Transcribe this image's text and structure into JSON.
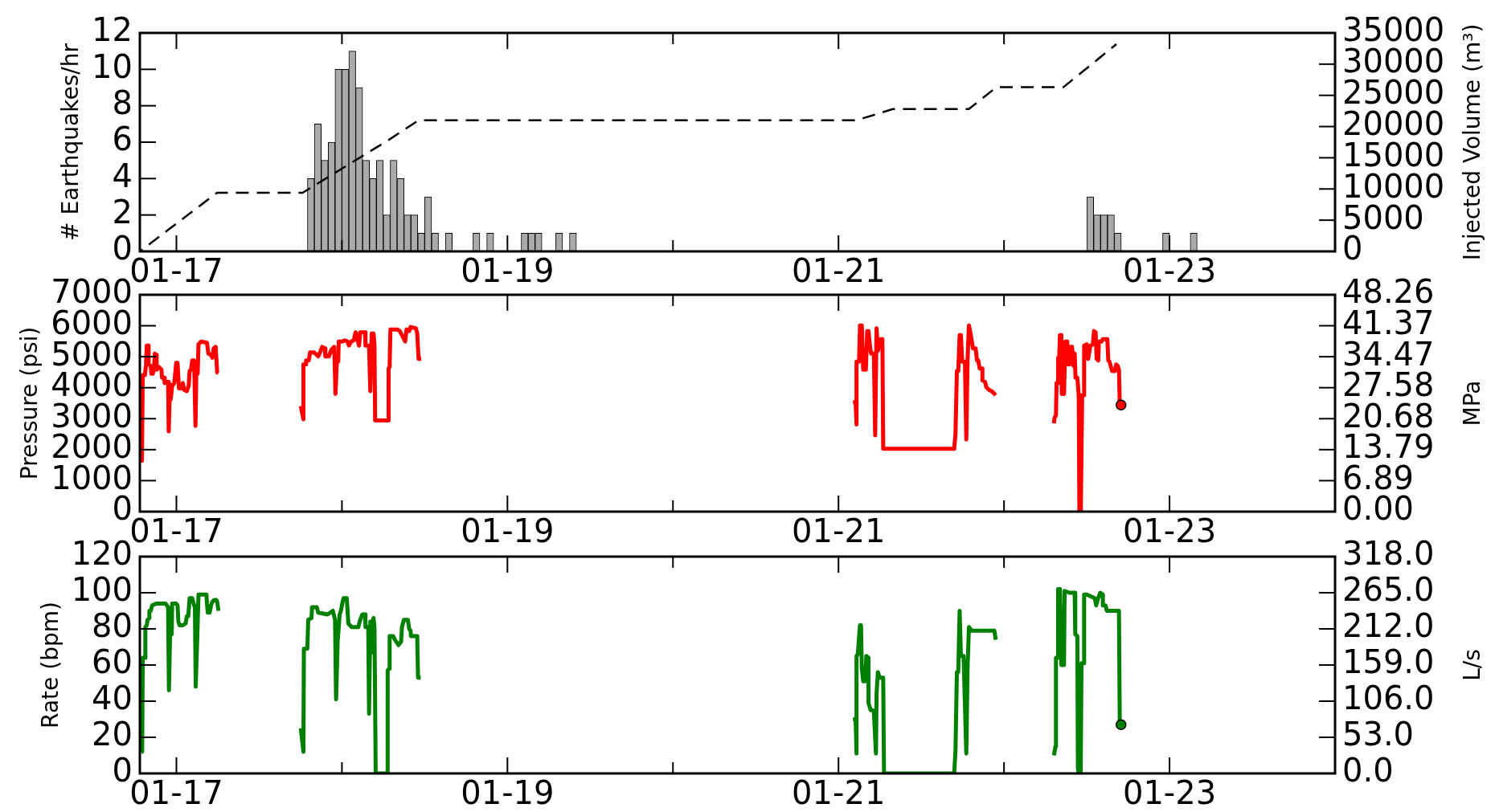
{
  "chart_data": [
    {
      "type": "histogram",
      "ylabel": "# Earthquakes/hr",
      "y2label": "Injected Volume (m³)",
      "bins": [
        "--01-17T19:00",
        "--01-17T20:00",
        "--01-17T21:00",
        "--01-17T22:00",
        "--01-17T23:00",
        "--01-18T00:00",
        "--01-18T01:00",
        "--01-18T02:00",
        "--01-18T03:00",
        "--01-18T04:00",
        "--01-18T05:00",
        "--01-18T06:00",
        "--01-18T07:00",
        "--01-18T08:00",
        "--01-18T09:00",
        "--01-18T10:00",
        "--01-18T11:00",
        "--01-18T12:00",
        "--01-18T13:00",
        "--01-18T14:00",
        "--01-18T15:00",
        "--01-18T16:00",
        "--01-18T17:00",
        "--01-18T18:00",
        "--01-18T19:00",
        "--01-18T20:00",
        "--01-18T21:00",
        "--01-18T22:00",
        "--01-18T23:00",
        "--01-19T00:00",
        "--01-19T01:00",
        "--01-19T02:00",
        "--01-19T03:00",
        "--01-19T04:00",
        "--01-19T05:00",
        "--01-19T06:00",
        "--01-19T07:00",
        "--01-19T08:00",
        "--01-19T09:00",
        "--01-19T10:00",
        "--01-19T11:00",
        "--01-19T12:00",
        "--01-19T13:00",
        "--01-19T14:00",
        "--01-19T15:00",
        "--01-19T16:00",
        "--01-19T17:00",
        "--01-19T18:00",
        "--01-19T19:00",
        "--01-19T20:00",
        "--01-19T21:00",
        "--01-19T22:00",
        "--01-19T23:00",
        "--01-20T00:00",
        "--01-20T01:00",
        "--01-20T02:00",
        "--01-20T03:00",
        "--01-20T04:00",
        "--01-20T05:00",
        "--01-20T06:00",
        "--01-20T07:00",
        "--01-20T08:00",
        "--01-20T09:00",
        "--01-20T10:00",
        "--01-20T11:00",
        "--01-20T12:00",
        "--01-20T13:00",
        "--01-20T14:00",
        "--01-20T15:00",
        "--01-20T16:00",
        "--01-20T17:00",
        "--01-20T18:00",
        "--01-20T19:00",
        "--01-20T20:00",
        "--01-20T21:00",
        "--01-20T22:00",
        "--01-20T23:00",
        "--01-21T00:00",
        "--01-21T01:00",
        "--01-21T02:00",
        "--01-21T03:00",
        "--01-21T04:00",
        "--01-21T05:00",
        "--01-21T06:00",
        "--01-21T07:00",
        "--01-21T08:00",
        "--01-21T09:00",
        "--01-21T10:00",
        "--01-21T11:00",
        "--01-21T12:00",
        "--01-21T13:00",
        "--01-21T14:00",
        "--01-21T15:00",
        "--01-21T16:00",
        "--01-21T17:00",
        "--01-21T18:00",
        "--01-21T19:00",
        "--01-21T20:00",
        "--01-21T21:00",
        "--01-21T22:00",
        "--01-21T23:00",
        "--01-22T00:00",
        "--01-22T01:00",
        "--01-22T02:00",
        "--01-22T03:00",
        "--01-22T04:00",
        "--01-22T05:00",
        "--01-22T06:00",
        "--01-22T07:00",
        "--01-22T08:00",
        "--01-22T09:00",
        "--01-22T10:00",
        "--01-22T11:00",
        "--01-22T12:00",
        "--01-22T13:00",
        "--01-22T14:00",
        "--01-22T15:00",
        "--01-22T16:00",
        "--01-22T17:00",
        "--01-22T18:00",
        "--01-22T19:00",
        "--01-22T20:00",
        "--01-22T21:00",
        "--01-22T22:00",
        "--01-22T23:00",
        "--01-23T00:00",
        "--01-23T01:00",
        "--01-23T02:00",
        "--01-23T03:00",
        "--01-23T04:00"
      ],
      "series": [
        {
          "color": "#aaaaaa",
          "values": [
            4,
            7,
            5,
            6,
            10,
            10,
            11,
            9,
            5,
            4,
            5,
            2,
            5,
            4,
            2,
            2,
            1,
            3,
            1,
            0,
            1,
            0,
            0,
            0,
            1,
            0,
            1,
            0,
            0,
            0,
            0,
            1,
            1,
            1,
            0,
            0,
            1,
            0,
            1,
            0,
            0,
            0,
            0,
            0,
            0,
            0,
            0,
            0,
            0,
            0,
            0,
            0,
            0,
            0,
            0,
            0,
            0,
            0,
            0,
            0,
            0,
            0,
            0,
            0,
            0,
            0,
            0,
            0,
            0,
            0,
            0,
            0,
            0,
            0,
            0,
            0,
            0,
            0,
            0,
            0,
            0,
            0,
            0,
            0,
            0,
            0,
            0,
            0,
            0,
            0,
            0,
            0,
            0,
            0,
            0,
            0,
            0,
            0,
            0,
            0,
            0,
            0,
            0,
            0,
            0,
            0,
            0,
            0,
            0,
            0,
            0,
            0,
            0,
            3,
            2,
            2,
            2,
            1,
            0,
            0,
            0,
            0,
            0,
            0,
            1,
            0,
            0,
            0,
            1
          ]
        },
        {
          "type": "line",
          "axis": "y2",
          "line_style": "dashed",
          "color": "#000000",
          "x": [
            "--01-16T18:42",
            "--01-17T05:54",
            "--01-17T18:18",
            "--01-18T06:42",
            "--01-18T11:06",
            "--01-21T02:36",
            "--01-21T07:54",
            "--01-21T18:54",
            "--01-21T22:54",
            "--01-22T08:36",
            "--01-22T16:18"
          ],
          "values": [
            0,
            9400,
            9400,
            17800,
            21000,
            21000,
            22800,
            22800,
            26300,
            26300,
            33200
          ]
        }
      ],
      "xlim": [
        "--01-16T18:42",
        "--01-24"
      ],
      "xticks": [
        {
          "value": "--01-17",
          "label": "01-17"
        },
        {
          "value": "--01-18",
          "label": null
        },
        {
          "value": "--01-19",
          "label": "01-19"
        },
        {
          "value": "--01-20",
          "label": null
        },
        {
          "value": "--01-21",
          "label": "01-21"
        },
        {
          "value": "--01-22",
          "label": null
        },
        {
          "value": "--01-23",
          "label": "01-23"
        }
      ],
      "ylim": [
        0,
        12
      ],
      "yticks": [
        0,
        2,
        4,
        6,
        8,
        10,
        12
      ],
      "y2lim": [
        0,
        35000
      ],
      "y2ticks": [
        0,
        5000,
        10000,
        15000,
        20000,
        25000,
        30000,
        35000
      ]
    },
    {
      "type": "line",
      "ylabel": "Pressure (psi)",
      "y2label": "MPa",
      "series": [
        {
          "color": "#ff0000",
          "x": [
            "--01-16T18:55",
            "--01-16T19:00",
            "--01-16T19:07",
            "--01-16T19:26",
            "--01-16T19:35",
            "--01-16T19:42",
            "--01-16T19:53",
            "--01-16T19:58",
            "--01-16T20:17",
            "--01-16T20:22",
            "--01-16T20:35",
            "--01-16T20:47",
            "--01-16T20:52",
            "--01-16T21:04",
            "--01-16T21:08",
            "--01-16T21:27",
            "--01-16T21:50",
            "--01-16T21:55",
            "--01-16T22:13",
            "--01-16T22:18",
            "--01-16T22:48",
            "--01-16T22:53",
            "--01-16T23:05",
            "--01-16T23:11",
            "--01-16T23:23",
            "--01-16T23:42",
            "--01-16T23:58",
            "--01-17T00:10",
            "--01-17T00:22",
            "--01-17T00:45",
            "--01-17T00:56",
            "--01-17T01:08",
            "--01-17T01:31",
            "--01-17T01:47",
            "--01-17T01:55",
            "--01-17T02:07",
            "--01-17T02:18",
            "--01-17T02:34",
            "--01-17T02:46",
            "--01-17T02:53",
            "--01-17T03:05",
            "--01-17T03:12",
            "--01-17T03:35",
            "--01-17T04:26",
            "--01-17T04:38",
            "--01-17T05:01",
            "--01-17T05:13",
            "--01-17T05:25",
            "--01-17T05:41",
            "--01-17T05:55",
            "--01-17T06:04",
            "--01-17T12:00",
            "--01-17T18:02",
            "--01-17T18:25",
            "--01-17T18:25",
            "--01-17T18:48",
            "--01-17T18:48",
            "--01-17T19:11",
            "--01-17T19:23",
            "--01-17T19:58",
            "--01-17T20:22",
            "--01-17T20:33",
            "--01-17T20:45",
            "--01-17T21:08",
            "--01-17T21:31",
            "--01-17T21:36",
            "--01-17T22:06",
            "--01-17T22:29",
            "--01-17T22:53",
            "--01-17T23:04",
            "--01-17T23:16",
            "--01-17T23:28",
            "--01-17T23:32",
            "--01-18T00:03",
            "--01-18T00:26",
            "--01-18T00:49",
            "--01-18T01:01",
            "--01-18T01:20",
            "--01-18T01:43",
            "--01-18T01:59",
            "--01-18T02:29",
            "--01-18T02:39",
            "--01-18T03:21",
            "--01-18T03:25",
            "--01-18T03:56",
            "--01-18T04:07",
            "--01-18T04:19",
            "--01-18T04:35",
            "--01-18T04:43",
            "--01-18T04:49",
            "--01-18T06:46",
            "--01-18T06:46",
            "--01-18T06:55",
            "--01-18T07:02",
            "--01-18T07:25",
            "--01-18T08:01",
            "--01-18T08:23",
            "--01-18T08:47",
            "--01-18T09:10",
            "--01-18T09:22",
            "--01-18T09:45",
            "--01-18T09:57",
            "--01-18T10:43",
            "--01-18T10:55",
            "--01-18T11:07",
            "--01-18T11:30",
            "--01-19T18:00",
            "--01-21T02:06",
            "--01-21T02:29",
            "--01-21T02:37",
            "--01-21T02:37",
            "--01-21T02:59",
            "--01-21T03:07",
            "--01-21T03:23",
            "--01-21T03:35",
            "--01-21T03:58",
            "--01-21T04:10",
            "--01-21T04:21",
            "--01-21T04:33",
            "--01-21T04:44",
            "--01-21T05:08",
            "--01-21T05:19",
            "--01-21T05:31",
            "--01-21T05:43",
            "--01-21T06:06",
            "--01-21T06:22",
            "--01-21T06:29",
            "--01-21T16:47",
            "--01-21T16:58",
            "--01-21T17:10",
            "--01-21T17:22",
            "--01-21T17:34",
            "--01-21T17:45",
            "--01-21T17:56",
            "--01-21T18:20",
            "--01-21T18:32",
            "--01-21T18:43",
            "--01-21T18:55",
            "--01-21T19:07",
            "--01-21T19:30",
            "--01-21T19:53",
            "--01-21T20:05",
            "--01-21T20:16",
            "--01-21T20:28",
            "--01-21T20:52",
            "--01-21T20:52",
            "--01-21T21:15",
            "--01-21T21:26",
            "--01-21T21:50",
            "--01-21T22:13",
            "--01-21T22:48",
            "--01-22T03:00",
            "--01-22T07:14",
            "--01-22T07:20",
            "--01-22T07:32",
            "--01-22T07:37",
            "--01-22T07:51",
            "--01-22T07:51",
            "--01-22T08:00",
            "--01-22T08:07",
            "--01-22T08:19",
            "--01-22T08:23",
            "--01-22T08:42",
            "--01-22T08:54",
            "--01-22T09:10",
            "--01-22T09:17",
            "--01-22T09:29",
            "--01-22T09:40",
            "--01-22T09:52",
            "--01-22T10:04",
            "--01-22T10:15",
            "--01-22T10:22",
            "--01-22T10:38",
            "--01-22T10:50",
            "--01-22T10:56",
            "--01-22T11:08",
            "--01-22T11:20",
            "--01-22T11:37",
            "--01-22T11:37",
            "--01-22T12:00",
            "--01-22T12:12",
            "--01-22T12:31",
            "--01-22T12:53",
            "--01-22T13:03",
            "--01-22T13:17",
            "--01-22T13:26",
            "--01-22T13:40",
            "--01-22T13:45",
            "--01-22T14:08",
            "--01-22T14:20",
            "--01-22T14:59",
            "--01-22T15:07",
            "--01-22T15:18",
            "--01-22T15:30",
            "--01-22T15:41",
            "--01-22T16:05",
            "--01-22T16:16",
            "--01-22T16:28",
            "--01-22T16:40",
            "--01-22T16:47",
            "--01-22T16:58"
          ],
          "values": [
            2420,
            1640,
            4410,
            4410,
            4710,
            5360,
            5360,
            4750,
            4710,
            4450,
            4450,
            4670,
            5100,
            5060,
            4580,
            4670,
            4580,
            4320,
            4320,
            4150,
            4190,
            2590,
            4110,
            3630,
            4060,
            4150,
            4800,
            4800,
            3980,
            3980,
            4150,
            3930,
            3890,
            4060,
            4540,
            4580,
            4880,
            4880,
            2770,
            4450,
            4450,
            5400,
            5490,
            5450,
            5100,
            5060,
            4970,
            5270,
            5320,
            4490,
            4490,
            null,
            3410,
            2980,
            4750,
            4750,
            4880,
            4880,
            5140,
            5140,
            5060,
            5010,
            5100,
            5320,
            5270,
            5010,
            5010,
            5230,
            5320,
            3800,
            4880,
            4840,
            5490,
            5490,
            5530,
            5490,
            5360,
            5490,
            5530,
            5790,
            5360,
            5790,
            5790,
            5360,
            5360,
            3890,
            5750,
            5750,
            5400,
            2940,
            2940,
            4620,
            4670,
            5880,
            5880,
            5880,
            5830,
            5660,
            5490,
            5880,
            5830,
            5960,
            5920,
            5750,
            4930,
            4930,
            null,
            3530,
            3530,
            2810,
            4840,
            4840,
            6010,
            6010,
            4580,
            4580,
            5830,
            5830,
            5360,
            5100,
            5100,
            2460,
            5920,
            5190,
            5570,
            5570,
            2030,
            2030,
            2510,
            4540,
            4540,
            5700,
            5700,
            4840,
            4840,
            2330,
            4930,
            6010,
            5790,
            5270,
            5270,
            4880,
            4880,
            4620,
            4620,
            4240,
            4190,
            4020,
            3930,
            3890,
            3760,
            null,
            2850,
            3030,
            3110,
            4150,
            4150,
            4970,
            4970,
            5700,
            5700,
            3800,
            3800,
            5490,
            5490,
            4750,
            4750,
            5320,
            5320,
            4710,
            5100,
            4320,
            4320,
            3760,
            0,
            0,
            3760,
            3760,
            5360,
            5400,
            4930,
            5360,
            5400,
            5830,
            5790,
            4930,
            4880,
            5490,
            5490,
            5570,
            5570,
            4880,
            4840,
            4670,
            4540,
            4540,
            4750,
            4710,
            4580,
            3460,
            3440
          ]
        },
        {
          "type": "scatter",
          "marker": "circle",
          "color": "#ff0000",
          "x": [
            "--01-22T16:58"
          ],
          "values": [
            3440
          ]
        }
      ],
      "xlim": [
        "--01-16T18:42",
        "--01-24"
      ],
      "xticks": [
        {
          "value": "--01-17",
          "label": "01-17"
        },
        {
          "value": "--01-18",
          "label": null
        },
        {
          "value": "--01-19",
          "label": "01-19"
        },
        {
          "value": "--01-20",
          "label": null
        },
        {
          "value": "--01-21",
          "label": "01-21"
        },
        {
          "value": "--01-22",
          "label": null
        },
        {
          "value": "--01-23",
          "label": "01-23"
        }
      ],
      "ylim": [
        0,
        7000
      ],
      "yticks": [
        0,
        1000,
        2000,
        3000,
        4000,
        5000,
        6000,
        7000
      ],
      "y2lim": [
        0,
        48.26
      ],
      "y2ticks": [
        {
          "value": 0,
          "label": "0.00"
        },
        6.89,
        13.79,
        20.68,
        27.58,
        34.47,
        41.37,
        48.26
      ]
    },
    {
      "type": "line",
      "ylabel": "Rate (bpm)",
      "y2label": "L/s",
      "series": [
        {
          "color": "#008000",
          "x": [
            "--01-16T18:55",
            "--01-16T19:02",
            "--01-16T19:07",
            "--01-16T19:26",
            "--01-16T19:30",
            "--01-16T19:42",
            "--01-16T19:49",
            "--01-16T20:05",
            "--01-16T20:05",
            "--01-16T20:17",
            "--01-16T20:29",
            "--01-16T21:04",
            "--01-16T22:25",
            "--01-16T22:37",
            "--01-16T22:48",
            "--01-16T22:55",
            "--01-16T23:05",
            "--01-16T23:19",
            "--01-16T23:23",
            "--01-16T23:58",
            "--01-17T00:10",
            "--01-17T00:17",
            "--01-17T00:28",
            "--01-17T00:56",
            "--01-17T01:20",
            "--01-17T01:31",
            "--01-17T01:43",
            "--01-17T01:55",
            "--01-17T02:18",
            "--01-17T02:29",
            "--01-17T02:41",
            "--01-17T02:48",
            "--01-17T03:05",
            "--01-17T03:12",
            "--01-17T04:21",
            "--01-17T04:26",
            "--01-17T04:33",
            "--01-17T04:49",
            "--01-17T05:01",
            "--01-17T05:13",
            "--01-17T05:31",
            "--01-17T05:47",
            "--01-17T05:55",
            "--01-17T06:06",
            "--01-17T12:00",
            "--01-17T18:02",
            "--01-17T18:25",
            "--01-17T18:29",
            "--01-17T18:59",
            "--01-17T19:07",
            "--01-17T19:35",
            "--01-17T19:40",
            "--01-17T20:22",
            "--01-17T20:33",
            "--01-17T21:55",
            "--01-17T22:41",
            "--01-17T23:00",
            "--01-17T23:09",
            "--01-17T23:23",
            "--01-17T23:40",
            "--01-17T23:51",
            "--01-18T00:03",
            "--01-18T00:14",
            "--01-18T00:42",
            "--01-18T00:49",
            "--01-18T00:56",
            "--01-18T01:24",
            "--01-18T02:22",
            "--01-18T02:39",
            "--01-18T02:58",
            "--01-18T03:21",
            "--01-18T03:25",
            "--01-18T03:49",
            "--01-18T03:56",
            "--01-18T04:07",
            "--01-18T04:19",
            "--01-18T04:26",
            "--01-18T04:35",
            "--01-18T04:43",
            "--01-18T04:54",
            "--01-18T06:38",
            "--01-18T06:38",
            "--01-18T06:50",
            "--01-18T06:55",
            "--01-18T07:25",
            "--01-18T07:41",
            "--01-18T08:12",
            "--01-18T08:35",
            "--01-18T08:42",
            "--01-18T08:59",
            "--01-18T09:34",
            "--01-18T09:45",
            "--01-18T09:57",
            "--01-18T10:01",
            "--01-18T10:55",
            "--01-18T11:02",
            "--01-18T11:25",
            "--01-19T18:00",
            "--01-21T02:06",
            "--01-21T02:29",
            "--01-21T02:37",
            "--01-21T02:37",
            "--01-21T02:48",
            "--01-21T03:07",
            "--01-21T03:16",
            "--01-21T03:23",
            "--01-21T03:35",
            "--01-21T03:53",
            "--01-21T04:02",
            "--01-21T04:21",
            "--01-21T04:21",
            "--01-21T04:40",
            "--01-21T04:56",
            "--01-21T05:08",
            "--01-21T05:26",
            "--01-21T05:31",
            "--01-21T05:43",
            "--01-21T05:59",
            "--01-21T06:29",
            "--01-21T06:36",
            "--01-21T16:47",
            "--01-21T16:58",
            "--01-21T17:10",
            "--01-21T17:22",
            "--01-21T17:34",
            "--01-21T17:45",
            "--01-21T18:08",
            "--01-21T18:32",
            "--01-21T18:43",
            "--01-21T18:55",
            "--01-21T19:18",
            "--01-21T22:36",
            "--01-21T22:48",
            "--01-22T03:00",
            "--01-22T07:14",
            "--01-22T07:28",
            "--01-22T07:32",
            "--01-22T07:51",
            "--01-22T07:51",
            "--01-22T08:07",
            "--01-22T08:19",
            "--01-22T08:42",
            "--01-22T08:47",
            "--01-22T09:29",
            "--01-22T10:15",
            "--01-22T10:20",
            "--01-22T10:38",
            "--01-22T10:43",
            "--01-22T10:50",
            "--01-22T11:07",
            "--01-22T11:14",
            "--01-22T11:37",
            "--01-22T11:37",
            "--01-22T12:00",
            "--01-22T13:10",
            "--01-22T13:22",
            "--01-22T13:34",
            "--01-22T13:57",
            "--01-22T14:20",
            "--01-22T14:20",
            "--01-22T14:43",
            "--01-22T14:55",
            "--01-22T16:28",
            "--01-22T16:40",
            "--01-22T16:47",
            "--01-22T16:58"
          ],
          "values": [
            12,
            12,
            64,
            64,
            81,
            82,
            85,
            86,
            90,
            90,
            93,
            94,
            94,
            93,
            92,
            46,
            77,
            77,
            94,
            94,
            93,
            84,
            82,
            82,
            83,
            87,
            87,
            97,
            97,
            94,
            92,
            48,
            83,
            99,
            99,
            94,
            89,
            89,
            93,
            95,
            96,
            96,
            95,
            90,
            null,
            25,
            12,
            69,
            69,
            85,
            86,
            92,
            92,
            89,
            88,
            90,
            85,
            41,
            73,
            88,
            90,
            94,
            97,
            97,
            90,
            83,
            81,
            81,
            85,
            88,
            88,
            81,
            81,
            33,
            84,
            67,
            84,
            86,
            81,
            0,
            0,
            57,
            58,
            76,
            76,
            74,
            71,
            73,
            81,
            85,
            85,
            80,
            79,
            76,
            76,
            53,
            53,
            null,
            30,
            30,
            11,
            65,
            66,
            82,
            82,
            58,
            51,
            51,
            65,
            64,
            39,
            35,
            35,
            34,
            11,
            44,
            56,
            53,
            53,
            0,
            0,
            13,
            56,
            56,
            90,
            65,
            65,
            11,
            59,
            81,
            79,
            79,
            74,
            null,
            10,
            15,
            64,
            64,
            102,
            102,
            60,
            60,
            101,
            100,
            100,
            77,
            76,
            3,
            0,
            0,
            61,
            61,
            99,
            99,
            97,
            93,
            96,
            100,
            99,
            93,
            93,
            90,
            90,
            90,
            28,
            27
          ]
        },
        {
          "type": "scatter",
          "marker": "circle",
          "color": "#008000",
          "x": [
            "--01-22T16:58"
          ],
          "values": [
            27
          ]
        }
      ],
      "xlim": [
        "--01-16T18:42",
        "--01-24"
      ],
      "xticks": [
        {
          "value": "--01-17",
          "label": "01-17"
        },
        {
          "value": "--01-18",
          "label": null
        },
        {
          "value": "--01-19",
          "label": "01-19"
        },
        {
          "value": "--01-20",
          "label": null
        },
        {
          "value": "--01-21",
          "label": "01-21"
        },
        {
          "value": "--01-22",
          "label": null
        },
        {
          "value": "--01-23",
          "label": "01-23"
        }
      ],
      "ylim": [
        0,
        120
      ],
      "yticks": [
        0,
        20,
        40,
        60,
        80,
        100,
        120
      ],
      "y2lim": [
        0,
        318
      ],
      "y2ticks": [
        {
          "value": 0,
          "label": "0.0"
        },
        {
          "value": 53,
          "label": "53.0"
        },
        {
          "value": 106,
          "label": "106.0"
        },
        {
          "value": 159,
          "label": "159.0"
        },
        {
          "value": 212,
          "label": "212.0"
        },
        {
          "value": 265,
          "label": "265.0"
        },
        {
          "value": 318,
          "label": "318.0"
        }
      ]
    }
  ]
}
